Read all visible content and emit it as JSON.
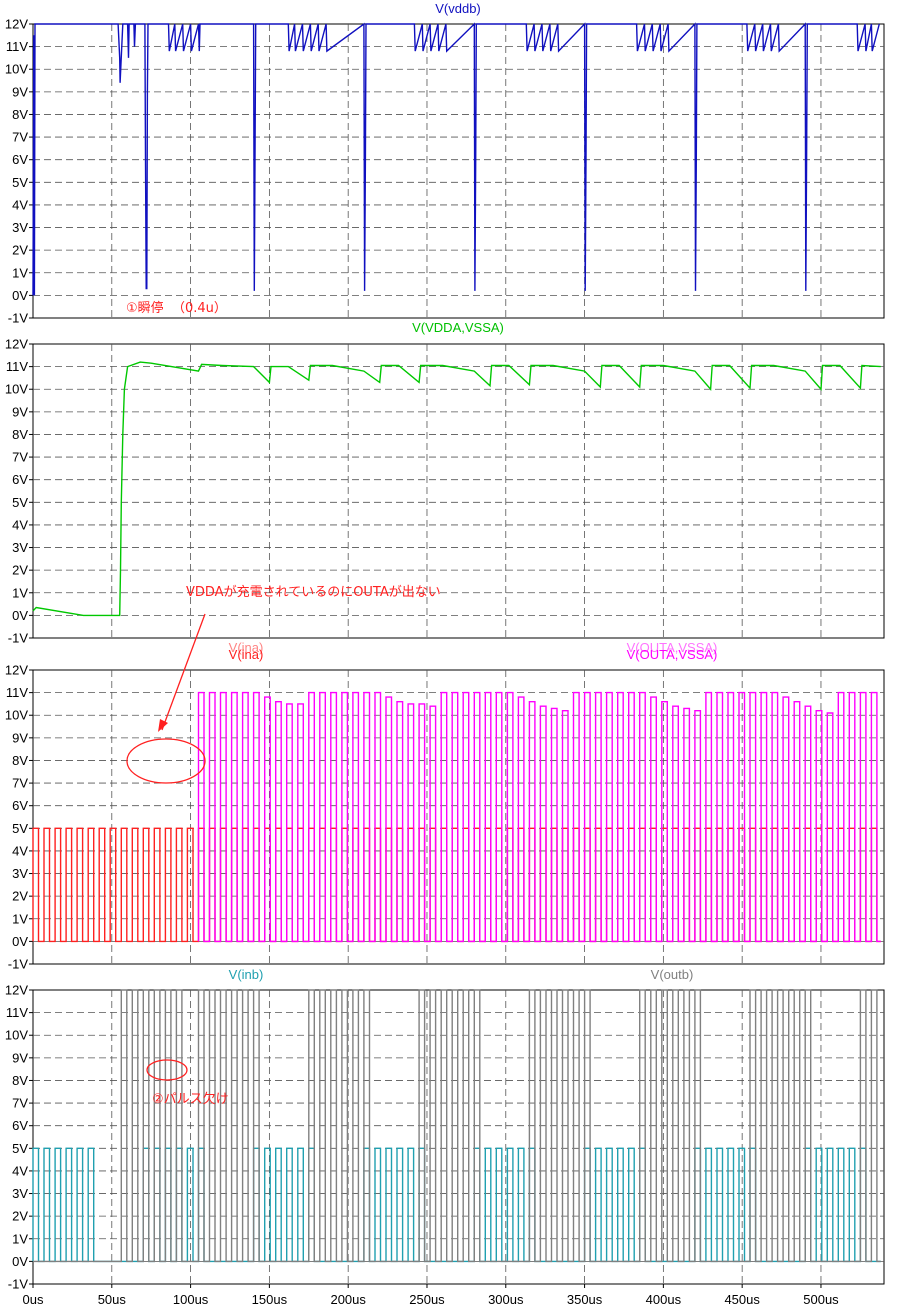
{
  "chart_data": [
    {
      "type": "line",
      "title": "V(vddb)",
      "series": [
        {
          "name": "V(vddb)",
          "color": "#1010c0",
          "x": [
            0,
            0.5,
            0.9,
            1.3,
            54,
            55,
            55.3,
            57,
            60,
            60.6,
            61,
            64,
            64.4,
            65,
            71,
            71.4,
            71.8,
            72.2,
            72.6,
            73,
            83,
            86,
            86.5,
            90,
            90.5,
            95,
            95.5,
            100,
            100.5,
            105,
            105.5,
            106,
            140,
            140.4,
            140.9,
            141.3,
            162,
            162.5,
            166,
            166.5,
            171,
            171.5,
            176,
            176.5,
            181,
            181.5,
            186,
            186.5,
            210,
            210.4,
            210.9,
            211.3,
            242,
            242.5,
            247,
            247.5,
            252,
            252.5,
            257,
            257.5,
            262,
            262.5,
            280,
            280.4,
            280.9,
            281.3,
            313,
            313.5,
            318,
            318.5,
            323,
            323.5,
            328,
            328.5,
            333,
            333.5,
            350,
            350.4,
            350.9,
            351.3,
            383,
            383.5,
            388,
            388.5,
            393,
            393.5,
            398,
            398.5,
            403,
            403.5,
            420,
            420.4,
            420.9,
            421.3,
            453,
            453.5,
            458,
            458.5,
            463,
            463.5,
            468,
            468.5,
            473,
            473.5,
            490,
            490.4,
            490.9,
            491.3,
            523,
            523.5,
            528,
            528.5,
            532,
            532.5,
            537
          ],
          "y": [
            0,
            11.5,
            0,
            12,
            12,
            10.5,
            9.4,
            12,
            12,
            10.5,
            12,
            12,
            11,
            12,
            12,
            6,
            0.3,
            0.3,
            9,
            12,
            12,
            12,
            10.8,
            12,
            10.8,
            12,
            10.8,
            12,
            10.8,
            12,
            10.8,
            12,
            12,
            0.2,
            6,
            12,
            12,
            10.8,
            12,
            10.8,
            12,
            10.8,
            12,
            10.8,
            12,
            10.8,
            12,
            10.8,
            12,
            0.2,
            6,
            12,
            12,
            10.8,
            12,
            10.8,
            12,
            10.8,
            12,
            10.8,
            12,
            10.8,
            12,
            0.2,
            6,
            12,
            12,
            10.8,
            12,
            10.8,
            12,
            10.8,
            12,
            10.8,
            12,
            10.8,
            12,
            0.2,
            6,
            12,
            12,
            10.8,
            12,
            10.8,
            12,
            10.8,
            12,
            10.8,
            12,
            10.8,
            12,
            0.2,
            6,
            12,
            12,
            10.8,
            12,
            10.8,
            12,
            10.8,
            12,
            10.8,
            12,
            10.8,
            12,
            0.2,
            6,
            12,
            12,
            10.8,
            12,
            10.8,
            12,
            10.8,
            12
          ]
        }
      ],
      "xlim": [
        0,
        540
      ],
      "ylim": [
        -1,
        12
      ],
      "x_ticks": [],
      "y_tick_labels": [
        "12V",
        "11V",
        "10V",
        "9V",
        "8V",
        "7V",
        "6V",
        "5V",
        "4V",
        "3V",
        "2V",
        "1V",
        "0V",
        "-1V"
      ],
      "annotations": [
        {
          "text": "①瞬停",
          "color": "#ff2020"
        },
        {
          "text": "（0.4u）",
          "color": "#ff2020"
        }
      ]
    },
    {
      "type": "line",
      "title": "V(VDDA,VSSA)",
      "series": [
        {
          "name": "V(VDDA,VSSA)",
          "color": "#00c800",
          "x": [
            0,
            2,
            32,
            55,
            55.5,
            56,
            57,
            58,
            60,
            68,
            75,
            105,
            107,
            120,
            140,
            150,
            151,
            162,
            175,
            176,
            190,
            210,
            220,
            221,
            232,
            245,
            246,
            260,
            280,
            290,
            291,
            302,
            315,
            316,
            330,
            350,
            360,
            361,
            372,
            385,
            386,
            400,
            420,
            430,
            431,
            442,
            455,
            456,
            470,
            490,
            500,
            501,
            512,
            525,
            526,
            538
          ],
          "y": [
            0.2,
            0.35,
            0,
            0,
            2,
            5,
            8,
            10,
            11,
            11.2,
            11.15,
            10.8,
            11.1,
            11.05,
            11.0,
            10.3,
            11.0,
            11.0,
            10.4,
            11.05,
            11.05,
            10.8,
            10.3,
            11.05,
            11.05,
            10.3,
            11.05,
            11.05,
            10.8,
            10.15,
            11.05,
            11.05,
            10.2,
            11.05,
            11.05,
            10.8,
            10.1,
            11.05,
            11.05,
            10.1,
            11.05,
            11.05,
            10.8,
            10.0,
            11.05,
            11.05,
            10.05,
            11.05,
            11.05,
            10.8,
            10.0,
            11.05,
            11.05,
            10.05,
            11.05,
            11.0
          ]
        }
      ],
      "xlim": [
        0,
        540
      ],
      "ylim": [
        -1,
        12
      ],
      "x_ticks": [],
      "y_tick_labels": [
        "12V",
        "11V",
        "10V",
        "9V",
        "8V",
        "7V",
        "6V",
        "5V",
        "4V",
        "3V",
        "2V",
        "1V",
        "0V",
        "-1V"
      ],
      "annotations": [
        {
          "text": "VDDAが充電されているのにOUTAが出ない",
          "color": "#ff2020"
        }
      ]
    },
    {
      "type": "line",
      "title": "V(ina)",
      "series": [
        {
          "name": "V(ina)",
          "color": "#ff2020",
          "pulse": {
            "period": 7.0,
            "duty": 0.5,
            "high": 5,
            "low": 0,
            "start": 0,
            "end": 538
          }
        },
        {
          "name": "V(OUTA,VSSA)",
          "color": "#ff00ff",
          "pulse": {
            "period": 7.0,
            "duty": 0.5,
            "low": 0,
            "start": 105,
            "end": 538,
            "high_levels": [
              11,
              11,
              11,
              11,
              11,
              11,
              10.8,
              10.6,
              10.5,
              10.5,
              11,
              11,
              11,
              11,
              11,
              11,
              11,
              10.8,
              10.6,
              10.5,
              10.5,
              10.4,
              11,
              11,
              11,
              11,
              11,
              11,
              11,
              10.8,
              10.6,
              10.4,
              10.3,
              10.2,
              11,
              11,
              11,
              11,
              11,
              11,
              11,
              10.8,
              10.6,
              10.4,
              10.3,
              10.2,
              11,
              11,
              11,
              11,
              11,
              11,
              11,
              10.8,
              10.6,
              10.4,
              10.2,
              10.1,
              11,
              11,
              11,
              11,
              11,
              11,
              11,
              10.8,
              10.6,
              10.3,
              10.2,
              10.1
            ]
          }
        }
      ],
      "xlim": [
        0,
        540
      ],
      "ylim": [
        -1,
        12
      ],
      "x_ticks": [],
      "y_tick_labels": [
        "12V",
        "11V",
        "10V",
        "9V",
        "8V",
        "7V",
        "6V",
        "5V",
        "4V",
        "3V",
        "2V",
        "1V",
        "0V",
        "-1V"
      ],
      "legend_labels": [
        "V(ina)",
        "V(OUTA,VSSA)"
      ],
      "legend_labels_shadow": [
        "V(ina)",
        "V(OUTA,VSSA)"
      ]
    },
    {
      "type": "line",
      "title": "V(inb)",
      "series": [
        {
          "name": "V(inb)",
          "color": "#20a0b0",
          "bursts": {
            "period": 7.0,
            "duty": 0.5,
            "high": 5,
            "low": 0,
            "burst_period": 70,
            "burst_pulses": 6,
            "burst_start": [
              0,
              70,
              140,
              210,
              280,
              350,
              420,
              490
            ]
          }
        },
        {
          "name": "V(outb)",
          "color": "#808080",
          "bursts": {
            "period": 7.0,
            "duty": 0.5,
            "high": 12,
            "low": 0,
            "burst_period": 70,
            "burst_pulses": 6,
            "burst_start": [
              56,
              105,
              175,
              245,
              315,
              385,
              455,
              525
            ]
          }
        }
      ],
      "xlim": [
        0,
        540
      ],
      "ylim": [
        -1,
        12
      ],
      "x_ticks": [
        0,
        50,
        100,
        150,
        200,
        250,
        300,
        350,
        400,
        450,
        500
      ],
      "x_tick_labels": [
        "0us",
        "50us",
        "100us",
        "150us",
        "200us",
        "250us",
        "300us",
        "350us",
        "400us",
        "450us",
        "500us"
      ],
      "y_tick_labels": [
        "12V",
        "11V",
        "10V",
        "9V",
        "8V",
        "7V",
        "6V",
        "5V",
        "4V",
        "3V",
        "2V",
        "1V",
        "0V",
        "-1V"
      ],
      "legend_labels": [
        "V(inb)",
        "V(outb)"
      ],
      "annotations": [
        {
          "text": "②パルス欠け",
          "color": "#ff2020"
        }
      ]
    }
  ]
}
